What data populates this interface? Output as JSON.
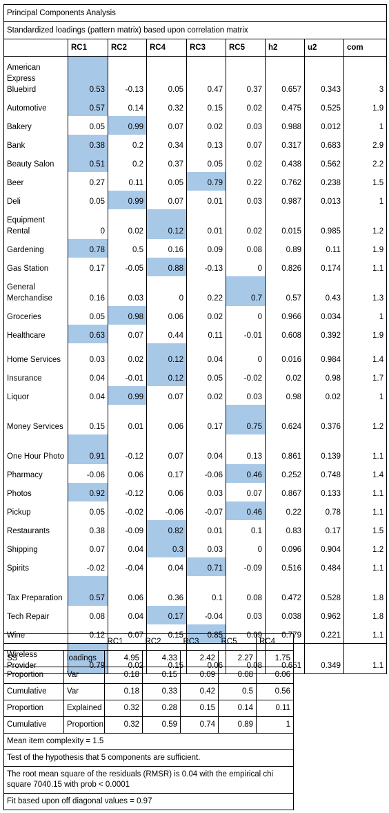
{
  "title": "Principal Components Analysis",
  "subtitle": "Standardized loadings (pattern matrix) based upon correlation matrix",
  "columns": [
    "RC1",
    "RC2",
    "RC4",
    "RC3",
    "RC5",
    "h2",
    "u2",
    "com"
  ],
  "highlight_color": "#a8c8e8",
  "rows": [
    {
      "label": "American Express Bluebird",
      "values": [
        "0.53",
        "-0.13",
        "0.05",
        "0.47",
        "0.37",
        "0.657",
        "0.343",
        "3"
      ],
      "highlight": [
        0
      ]
    },
    {
      "label": "Automotive",
      "values": [
        "0.57",
        "0.14",
        "0.32",
        "0.15",
        "0.02",
        "0.475",
        "0.525",
        "1.9"
      ],
      "highlight": [
        0
      ]
    },
    {
      "label": "Bakery",
      "values": [
        "0.05",
        "0.99",
        "0.07",
        "0.02",
        "0.03",
        "0.988",
        "0.012",
        "1"
      ],
      "highlight": [
        1
      ]
    },
    {
      "label": "Bank",
      "values": [
        "0.38",
        "0.2",
        "0.34",
        "0.13",
        "0.07",
        "0.317",
        "0.683",
        "2.9"
      ],
      "highlight": [
        0
      ]
    },
    {
      "label": "Beauty Salon",
      "values": [
        "0.51",
        "0.2",
        "0.37",
        "0.05",
        "0.02",
        "0.438",
        "0.562",
        "2.2"
      ],
      "highlight": [
        0
      ]
    },
    {
      "label": "Beer",
      "values": [
        "0.27",
        "0.11",
        "0.05",
        "0.79",
        "0.22",
        "0.762",
        "0.238",
        "1.5"
      ],
      "highlight": [
        3
      ]
    },
    {
      "label": "Deli",
      "values": [
        "0.05",
        "0.99",
        "0.07",
        "0.01",
        "0.03",
        "0.987",
        "0.013",
        "1"
      ],
      "highlight": [
        1
      ]
    },
    {
      "label": "Equipment Rental",
      "values": [
        "0",
        "0.02",
        "0.12",
        "0.01",
        "0.02",
        "0.015",
        "0.985",
        "1.2"
      ],
      "highlight": [
        2
      ]
    },
    {
      "label": "Gardening",
      "values": [
        "0.78",
        "0.5",
        "0.16",
        "0.09",
        "0.08",
        "0.89",
        "0.11",
        "1.9"
      ],
      "highlight": [
        0
      ]
    },
    {
      "label": "Gas Station",
      "values": [
        "0.17",
        "-0.05",
        "0.88",
        "-0.13",
        "0",
        "0.826",
        "0.174",
        "1.1"
      ],
      "highlight": [
        2
      ]
    },
    {
      "label": "General Merchandise",
      "values": [
        "0.16",
        "0.03",
        "0",
        "0.22",
        "0.7",
        "0.57",
        "0.43",
        "1.3"
      ],
      "highlight": [
        4
      ]
    },
    {
      "label": "Groceries",
      "values": [
        "0.05",
        "0.98",
        "0.06",
        "0.02",
        "0",
        "0.966",
        "0.034",
        "1"
      ],
      "highlight": [
        1
      ]
    },
    {
      "label": "Healthcare",
      "values": [
        "0.63",
        "0.07",
        "0.44",
        "0.11",
        "-0.01",
        "0.608",
        "0.392",
        "1.9"
      ],
      "highlight": [
        0
      ]
    },
    {
      "label": "Home Services",
      "values": [
        "0.03",
        "0.02",
        "0.12",
        "0.04",
        "0",
        "0.016",
        "0.984",
        "1.4"
      ],
      "highlight": [
        2
      ]
    },
    {
      "label": "Insurance",
      "values": [
        "0.04",
        "-0.01",
        "0.12",
        "0.05",
        "-0.02",
        "0.02",
        "0.98",
        "1.7"
      ],
      "highlight": [
        2
      ]
    },
    {
      "label": "Liquor",
      "values": [
        "0.04",
        "0.99",
        "0.07",
        "0.02",
        "0.03",
        "0.98",
        "0.02",
        "1"
      ],
      "highlight": [
        1
      ]
    },
    {
      "label": "Money Services",
      "values": [
        "0.15",
        "0.01",
        "0.06",
        "0.17",
        "0.75",
        "0.624",
        "0.376",
        "1.2"
      ],
      "highlight": [
        4
      ]
    },
    {
      "label": "One Hour Photo",
      "values": [
        "0.91",
        "-0.12",
        "0.07",
        "0.04",
        "0.13",
        "0.861",
        "0.139",
        "1.1"
      ],
      "highlight": [
        0
      ]
    },
    {
      "label": "Pharmacy",
      "values": [
        "-0.06",
        "0.06",
        "0.17",
        "-0.06",
        "0.46",
        "0.252",
        "0.748",
        "1.4"
      ],
      "highlight": [
        4
      ]
    },
    {
      "label": "Photos",
      "values": [
        "0.92",
        "-0.12",
        "0.06",
        "0.03",
        "0.07",
        "0.867",
        "0.133",
        "1.1"
      ],
      "highlight": [
        0
      ]
    },
    {
      "label": "Pickup",
      "values": [
        "0.05",
        "-0.02",
        "-0.06",
        "-0.07",
        "0.46",
        "0.22",
        "0.78",
        "1.1"
      ],
      "highlight": [
        4
      ]
    },
    {
      "label": "Restaurants",
      "values": [
        "0.38",
        "-0.09",
        "0.82",
        "0.01",
        "0.1",
        "0.83",
        "0.17",
        "1.5"
      ],
      "highlight": [
        2
      ]
    },
    {
      "label": "Shipping",
      "values": [
        "0.07",
        "0.04",
        "0.3",
        "0.03",
        "0",
        "0.096",
        "0.904",
        "1.2"
      ],
      "highlight": [
        2
      ]
    },
    {
      "label": "Spirits",
      "values": [
        "-0.02",
        "-0.04",
        "0.04",
        "0.71",
        "-0.09",
        "0.516",
        "0.484",
        "1.1"
      ],
      "highlight": [
        3
      ]
    },
    {
      "label": "Tax Preparation",
      "values": [
        "0.57",
        "0.06",
        "0.36",
        "0.1",
        "0.08",
        "0.472",
        "0.528",
        "1.8"
      ],
      "highlight": [
        0
      ]
    },
    {
      "label": "Tech Repair",
      "values": [
        "0.08",
        "0.04",
        "0.17",
        "-0.04",
        "0.03",
        "0.038",
        "0.962",
        "1.8"
      ],
      "highlight": [
        2
      ]
    },
    {
      "label": "Wine",
      "values": [
        "0.12",
        "0.07",
        "0.15",
        "0.85",
        "0.09",
        "0.779",
        "0.221",
        "1.1"
      ],
      "highlight": [
        3
      ]
    },
    {
      "label": "Wireless Provider",
      "values": [
        "0.79",
        "0.02",
        "0.15",
        "0.06",
        "0.08",
        "0.651",
        "0.349",
        "1.1"
      ],
      "highlight": [
        0
      ]
    }
  ],
  "summary": {
    "columns": [
      "RC1",
      "RC2",
      "RC3",
      "RC5",
      "RC4"
    ],
    "rows": [
      {
        "label1": "SS",
        "label2": "loadings",
        "values": [
          "4.95",
          "4.33",
          "2.42",
          "2.27",
          "1.75"
        ]
      },
      {
        "label1": "Proportion",
        "label2": "Var",
        "values": [
          "0.18",
          "0.15",
          "0.09",
          "0.08",
          "0.06"
        ]
      },
      {
        "label1": "Cumulative",
        "label2": "Var",
        "values": [
          "0.18",
          "0.33",
          "0.42",
          "0.5",
          "0.56"
        ]
      },
      {
        "label1": "Proportion",
        "label2": "Explained",
        "values": [
          "0.32",
          "0.28",
          "0.15",
          "0.14",
          "0.11"
        ]
      },
      {
        "label1": "Cumulative",
        "label2": "Proportion",
        "values": [
          "0.32",
          "0.59",
          "0.74",
          "0.89",
          "1"
        ]
      }
    ],
    "notes": [
      "Mean item complexity = 1.5",
      "Test of the hypothesis that 5 components are sufficient.",
      "The root mean square of the residuals (RMSR) is 0.04 with the empirical chi square 7040.15 with prob < 0.0001",
      "Fit based upon off diagonal values = 0.97"
    ]
  }
}
